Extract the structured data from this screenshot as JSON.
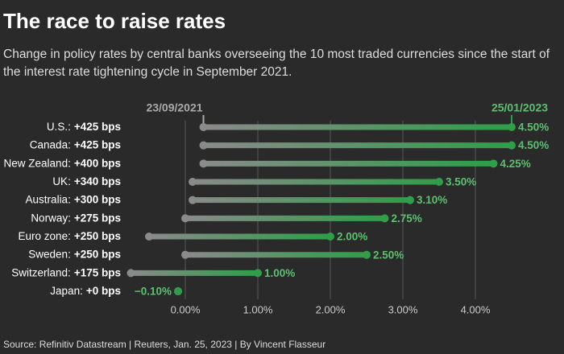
{
  "chart_data": {
    "type": "dumbbell",
    "title": "The race to raise rates",
    "subtitle": [
      "Change in policy rates by central banks overseeing the 10 most traded currencies since the start of",
      "the interest rate tightening cycle in September 2021."
    ],
    "source": "Source: Refinitiv Datastream | Reuters, Jan. 25, 2023 | By Vincent Flasseur",
    "categories": [
      "U.S.:",
      "Canada:",
      "New Zealand:",
      "UK:",
      "Australia:",
      "Norway:",
      "Euro zone:",
      "Sweden:",
      "Switzerland:",
      "Japan:"
    ],
    "change_labels": [
      "+425 bps",
      "+425 bps",
      "+400 bps",
      "+340 bps",
      "+300 bps",
      "+275 bps",
      "+250 bps",
      "+250 bps",
      "+175 bps",
      "+0 bps"
    ],
    "series": [
      {
        "name": "23/09/2021",
        "color": "#8a8a8a",
        "values": [
          0.25,
          0.25,
          0.25,
          0.1,
          0.1,
          0,
          -0.5,
          0,
          -0.75,
          -0.1
        ]
      },
      {
        "name": "25/01/2023",
        "color": "#2e9e48",
        "values": [
          4.5,
          4.5,
          4.25,
          3.5,
          3.1,
          2.75,
          2.0,
          2.5,
          1.0,
          -0.1
        ],
        "value_labels": [
          "4.50%",
          "4.50%",
          "4.25%",
          "3.50%",
          "3.10%",
          "2.75%",
          "2.00%",
          "2.50%",
          "1.00%",
          "−0.10%"
        ]
      }
    ],
    "xlim": [
      -0.8,
      4.9
    ],
    "xticks": [
      {
        "value": 0,
        "label": "0.00%"
      },
      {
        "value": 1,
        "label": "1.00%"
      },
      {
        "value": 2,
        "label": "2.00%"
      },
      {
        "value": 3,
        "label": "3.00%"
      },
      {
        "value": 4,
        "label": "4.00%"
      }
    ],
    "grid": true
  }
}
